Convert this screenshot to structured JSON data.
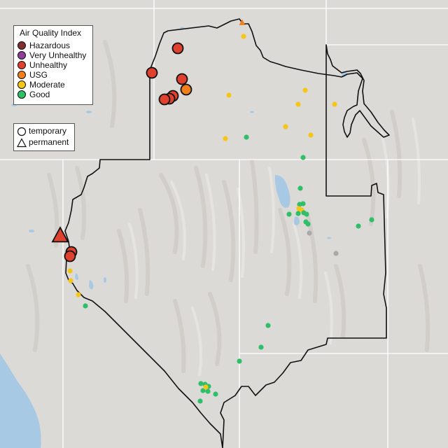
{
  "legend": {
    "title": "Air Quality Index",
    "categories": [
      {
        "label": "Hazardous",
        "color": "#7e3033"
      },
      {
        "label": "Very Unhealthy",
        "color": "#8f3f97"
      },
      {
        "label": "Unhealthy",
        "color": "#e0412e"
      },
      {
        "label": "USG",
        "color": "#f07f1c"
      },
      {
        "label": "Moderate",
        "color": "#f5c518"
      },
      {
        "label": "Good",
        "color": "#2fbf68"
      }
    ],
    "monitor_types": [
      {
        "label": "temporary",
        "icon": "circle-outline-icon"
      },
      {
        "label": "permanent",
        "icon": "triangle-outline-icon"
      }
    ]
  },
  "colors": {
    "background": "#dcdad6",
    "water": "#a8c9e3",
    "boundary": "#111111",
    "state_lines": "#ffffff",
    "no_data": "#a9a9a9"
  },
  "monitors": [
    {
      "aqi": "USG",
      "type": "permanent",
      "size": "small"
    },
    {
      "aqi": "Moderate",
      "type": "temporary",
      "size": "small"
    },
    {
      "aqi": "Unhealthy",
      "type": "temporary",
      "size": "large"
    },
    {
      "aqi": "Unhealthy",
      "type": "temporary",
      "size": "large"
    },
    {
      "aqi": "Unhealthy",
      "type": "temporary",
      "size": "large"
    },
    {
      "aqi": "USG",
      "type": "temporary",
      "size": "large"
    },
    {
      "aqi": "Unhealthy",
      "type": "temporary",
      "size": "large"
    },
    {
      "aqi": "Unhealthy",
      "type": "temporary",
      "size": "large"
    },
    {
      "aqi": "Unhealthy",
      "type": "temporary",
      "size": "large"
    },
    {
      "aqi": "Moderate",
      "type": "temporary",
      "size": "small"
    },
    {
      "aqi": "Moderate",
      "type": "temporary",
      "size": "small"
    },
    {
      "aqi": "Moderate",
      "type": "temporary",
      "size": "small"
    },
    {
      "aqi": "Moderate",
      "type": "temporary",
      "size": "small"
    },
    {
      "aqi": "Moderate",
      "type": "temporary",
      "size": "small"
    },
    {
      "aqi": "Moderate",
      "type": "temporary",
      "size": "small"
    },
    {
      "aqi": "Good",
      "type": "temporary",
      "size": "small"
    },
    {
      "aqi": "Moderate",
      "type": "temporary",
      "size": "small"
    },
    {
      "aqi": "Good",
      "type": "temporary",
      "size": "small"
    },
    {
      "aqi": "Good",
      "type": "temporary",
      "size": "small"
    },
    {
      "aqi": "Good",
      "type": "temporary",
      "size": "small"
    },
    {
      "aqi": "Good",
      "type": "temporary",
      "size": "small"
    },
    {
      "aqi": "Moderate",
      "type": "temporary",
      "size": "small"
    },
    {
      "aqi": "Moderate",
      "type": "temporary",
      "size": "small"
    },
    {
      "aqi": "Good",
      "type": "temporary",
      "size": "small"
    },
    {
      "aqi": "Good",
      "type": "temporary",
      "size": "small"
    },
    {
      "aqi": "Good",
      "type": "temporary",
      "size": "small"
    },
    {
      "aqi": "Good",
      "type": "temporary",
      "size": "small"
    },
    {
      "aqi": "none",
      "type": "temporary",
      "size": "small"
    },
    {
      "aqi": "Good",
      "type": "temporary",
      "size": "small"
    },
    {
      "aqi": "Good",
      "type": "temporary",
      "size": "small"
    },
    {
      "aqi": "none",
      "type": "temporary",
      "size": "small"
    },
    {
      "aqi": "Good",
      "type": "temporary",
      "size": "small"
    },
    {
      "aqi": "Good",
      "type": "temporary",
      "size": "small"
    },
    {
      "aqi": "Good",
      "type": "temporary",
      "size": "small"
    },
    {
      "aqi": "Unhealthy",
      "type": "permanent",
      "size": "large"
    },
    {
      "aqi": "Unhealthy",
      "type": "temporary",
      "size": "large"
    },
    {
      "aqi": "Unhealthy",
      "type": "temporary",
      "size": "large"
    },
    {
      "aqi": "Moderate",
      "type": "temporary",
      "size": "small"
    },
    {
      "aqi": "Moderate",
      "type": "temporary",
      "size": "small"
    },
    {
      "aqi": "Moderate",
      "type": "temporary",
      "size": "small"
    },
    {
      "aqi": "Good",
      "type": "temporary",
      "size": "small"
    },
    {
      "aqi": "Good",
      "type": "temporary",
      "size": "small"
    },
    {
      "aqi": "Good",
      "type": "temporary",
      "size": "small"
    },
    {
      "aqi": "Good",
      "type": "temporary",
      "size": "small"
    },
    {
      "aqi": "Good",
      "type": "temporary",
      "size": "small"
    },
    {
      "aqi": "Good",
      "type": "temporary",
      "size": "small"
    },
    {
      "aqi": "Good",
      "type": "temporary",
      "size": "small"
    },
    {
      "aqi": "Good",
      "type": "temporary",
      "size": "small"
    },
    {
      "aqi": "Moderate",
      "type": "temporary",
      "size": "small"
    },
    {
      "aqi": "Good",
      "type": "temporary",
      "size": "small"
    },
    {
      "aqi": "Good",
      "type": "temporary",
      "size": "small"
    }
  ]
}
